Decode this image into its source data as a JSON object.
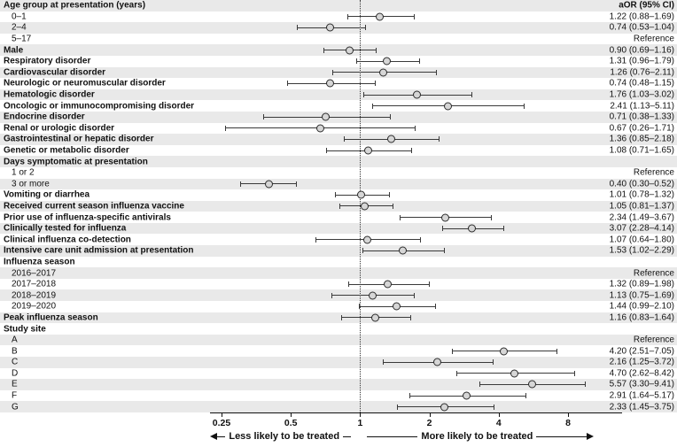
{
  "chart_data": {
    "type": "forest",
    "title": "",
    "right_column_header": "aOR (95% CI)",
    "axis": {
      "scale": "log",
      "ticks": [
        0.25,
        0.5,
        1,
        2,
        4,
        8
      ],
      "reference_line": 1
    },
    "arrows": {
      "left": "Less likely to be treated",
      "right": "More likely to be treated"
    },
    "colors": {
      "stripe": "#e9e9e9",
      "marker_fill": "#d6d6d6",
      "marker_border": "#2b2b2b",
      "ci_line": "#3a3a3a"
    },
    "rows": [
      {
        "label": "Age group at presentation (years)",
        "bold": true,
        "right": "aOR (95% CI)",
        "right_bold": true
      },
      {
        "label": "0–1",
        "indent": true,
        "or": 1.22,
        "lo": 0.88,
        "hi": 1.69,
        "right": "1.22 (0.88–1.69)"
      },
      {
        "label": "2–4",
        "indent": true,
        "or": 0.74,
        "lo": 0.53,
        "hi": 1.04,
        "right": "0.74 (0.53–1.04)"
      },
      {
        "label": "5–17",
        "indent": true,
        "right": "Reference"
      },
      {
        "label": "Male",
        "bold": true,
        "or": 0.9,
        "lo": 0.69,
        "hi": 1.16,
        "right": "0.90 (0.69–1.16)"
      },
      {
        "label": "Respiratory disorder",
        "bold": true,
        "or": 1.31,
        "lo": 0.96,
        "hi": 1.79,
        "right": "1.31 (0.96–1.79)"
      },
      {
        "label": "Cardiovascular disorder",
        "bold": true,
        "or": 1.26,
        "lo": 0.76,
        "hi": 2.11,
        "right": "1.26 (0.76–2.11)"
      },
      {
        "label": "Neurologic or neuromuscular disorder",
        "bold": true,
        "or": 0.74,
        "lo": 0.48,
        "hi": 1.15,
        "right": "0.74 (0.48–1.15)"
      },
      {
        "label": "Hematologic disorder",
        "bold": true,
        "or": 1.76,
        "lo": 1.03,
        "hi": 3.02,
        "right": "1.76 (1.03–3.02)"
      },
      {
        "label": "Oncologic or immunocompromising disorder",
        "bold": true,
        "or": 2.41,
        "lo": 1.13,
        "hi": 5.11,
        "right": "2.41 (1.13–5.11)"
      },
      {
        "label": "Endocrine disorder",
        "bold": true,
        "or": 0.71,
        "lo": 0.38,
        "hi": 1.33,
        "right": "0.71 (0.38–1.33)"
      },
      {
        "label": "Renal or urologic disorder",
        "bold": true,
        "or": 0.67,
        "lo": 0.26,
        "hi": 1.71,
        "right": "0.67 (0.26–1.71)"
      },
      {
        "label": "Gastrointestinal or hepatic disorder",
        "bold": true,
        "or": 1.36,
        "lo": 0.85,
        "hi": 2.18,
        "right": "1.36 (0.85–2.18)"
      },
      {
        "label": "Genetic or metabolic disorder",
        "bold": true,
        "or": 1.08,
        "lo": 0.71,
        "hi": 1.65,
        "right": "1.08 (0.71–1.65)"
      },
      {
        "label": "Days symptomatic at presentation",
        "bold": true,
        "right": ""
      },
      {
        "label": "1 or 2",
        "indent": true,
        "right": "Reference"
      },
      {
        "label": "3 or more",
        "indent": true,
        "or": 0.4,
        "lo": 0.3,
        "hi": 0.52,
        "right": "0.40 (0.30–0.52)"
      },
      {
        "label": "Vomiting or diarrhea",
        "bold": true,
        "or": 1.01,
        "lo": 0.78,
        "hi": 1.32,
        "right": "1.01 (0.78–1.32)"
      },
      {
        "label": "Received current season influenza vaccine",
        "bold": true,
        "or": 1.05,
        "lo": 0.81,
        "hi": 1.37,
        "right": "1.05 (0.81–1.37)"
      },
      {
        "label": "Prior use of influenza-specific antivirals",
        "bold": true,
        "or": 2.34,
        "lo": 1.49,
        "hi": 3.67,
        "right": "2.34 (1.49–3.67)"
      },
      {
        "label": "Clinically tested for influenza",
        "bold": true,
        "or": 3.07,
        "lo": 2.28,
        "hi": 4.14,
        "right": "3.07 (2.28–4.14)"
      },
      {
        "label": "Clinical influenza co-detection",
        "bold": true,
        "or": 1.07,
        "lo": 0.64,
        "hi": 1.8,
        "right": "1.07 (0.64–1.80)"
      },
      {
        "label": "Intensive care unit admission at presentation",
        "bold": true,
        "or": 1.53,
        "lo": 1.02,
        "hi": 2.29,
        "right": "1.53 (1.02–2.29)"
      },
      {
        "label": "Influenza season",
        "bold": true,
        "right": ""
      },
      {
        "label": "2016–2017",
        "indent": true,
        "right": "Reference"
      },
      {
        "label": "2017–2018",
        "indent": true,
        "or": 1.32,
        "lo": 0.89,
        "hi": 1.98,
        "right": "1.32 (0.89–1.98)"
      },
      {
        "label": "2018–2019",
        "indent": true,
        "or": 1.13,
        "lo": 0.75,
        "hi": 1.69,
        "right": "1.13 (0.75–1.69)"
      },
      {
        "label": "2019–2020",
        "indent": true,
        "or": 1.44,
        "lo": 0.99,
        "hi": 2.1,
        "right": "1.44 (0.99–2.10)"
      },
      {
        "label": "Peak influenza season",
        "bold": true,
        "or": 1.16,
        "lo": 0.83,
        "hi": 1.64,
        "right": "1.16 (0.83–1.64)"
      },
      {
        "label": "Study site",
        "bold": true,
        "right": ""
      },
      {
        "label": "A",
        "indent": true,
        "right": "Reference"
      },
      {
        "label": "B",
        "indent": true,
        "or": 4.2,
        "lo": 2.51,
        "hi": 7.05,
        "right": "4.20 (2.51–7.05)"
      },
      {
        "label": "C",
        "indent": true,
        "or": 2.16,
        "lo": 1.25,
        "hi": 3.72,
        "right": "2.16 (1.25–3.72)"
      },
      {
        "label": "D",
        "indent": true,
        "or": 4.7,
        "lo": 2.62,
        "hi": 8.42,
        "right": "4.70 (2.62–8.42)"
      },
      {
        "label": "E",
        "indent": true,
        "or": 5.57,
        "lo": 3.3,
        "hi": 9.41,
        "right": "5.57 (3.30–9.41)"
      },
      {
        "label": "F",
        "indent": true,
        "or": 2.91,
        "lo": 1.64,
        "hi": 5.17,
        "right": "2.91 (1.64–5.17)"
      },
      {
        "label": "G",
        "indent": true,
        "or": 2.33,
        "lo": 1.45,
        "hi": 3.75,
        "right": "2.33 (1.45–3.75)"
      }
    ]
  }
}
